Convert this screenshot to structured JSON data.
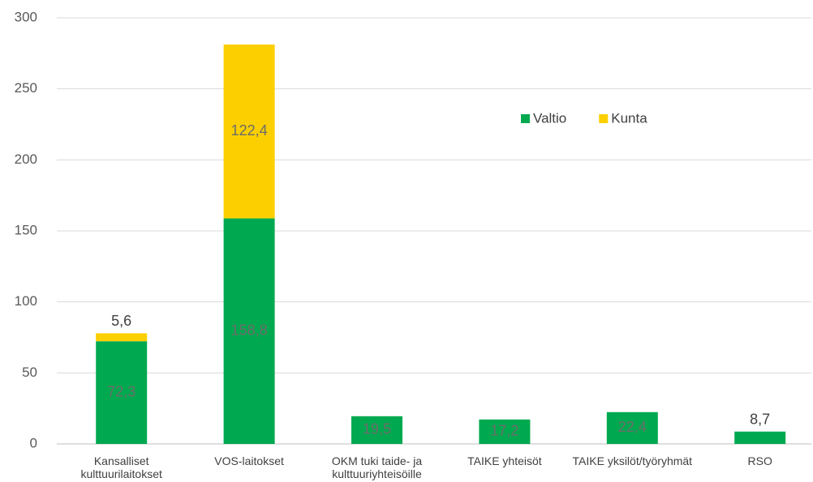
{
  "chart_data": {
    "type": "stacked_bar",
    "categories": [
      "Kansalliset kulttuurilaitokset",
      "VOS-laitokset",
      "OKM tuki taide- ja kulttuuriyhteisöille",
      "TAIKE yhteisöt",
      "TAIKE yksilöt/työryhmät",
      "RSO"
    ],
    "series": [
      {
        "name": "Valtio",
        "color": "#00a94f",
        "values": [
          72.3,
          158.8,
          19.5,
          17.2,
          22.4,
          8.7
        ],
        "value_labels": [
          "72,3",
          "158,8",
          "19,5",
          "17,2",
          "22,4",
          "8,7"
        ]
      },
      {
        "name": "Kunta",
        "color": "#fccf00",
        "values": [
          5.6,
          122.4,
          null,
          null,
          null,
          null
        ],
        "value_labels": [
          "5,6",
          "122,4",
          null,
          null,
          null,
          null
        ]
      }
    ],
    "ylim": [
      0,
      300
    ],
    "yticks": [
      0,
      50,
      100,
      150,
      200,
      250,
      300
    ],
    "grid": true,
    "legend": "upper right"
  }
}
